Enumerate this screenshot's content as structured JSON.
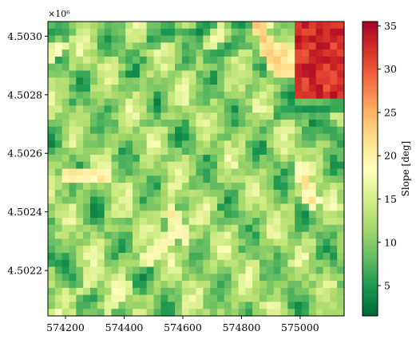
{
  "chart_data": {
    "type": "heatmap",
    "title": "",
    "xlabel": "",
    "ylabel": "",
    "y_offset_label": "×10⁶",
    "xlim": [
      574140,
      575150
    ],
    "ylim": [
      4502045,
      4503050
    ],
    "x_ticks": [
      574200,
      574400,
      574600,
      574800,
      575000
    ],
    "x_tick_labels": [
      "574200",
      "574400",
      "574600",
      "574800",
      "575000"
    ],
    "y_ticks": [
      4502200,
      4502400,
      4502600,
      4502800,
      4503000
    ],
    "y_tick_labels": [
      "4.5022",
      "4.5024",
      "4.5026",
      "4.5028",
      "4.5030"
    ],
    "colorbar": {
      "label": "Slope [deg]",
      "colormap": "RdYlGn_r",
      "range": [
        1.5,
        35.5
      ],
      "ticks": [
        5,
        10,
        15,
        20,
        25,
        30,
        35
      ],
      "tick_labels": [
        "5",
        "10",
        "15",
        "20",
        "25",
        "30",
        "35"
      ]
    },
    "grid": false,
    "features": {
      "grid_cols": 42,
      "grid_rows": 42,
      "background_slope": 11,
      "steep_zone": {
        "x": [
          574990,
          575150
        ],
        "y": [
          4502790,
          4503050
        ],
        "slope": 31
      },
      "ridges": [
        {
          "from": [
            574860,
            4503030
          ],
          "to": [
            574930,
            4502880
          ],
          "slope": 24
        },
        {
          "from": [
            574930,
            4502960
          ],
          "to": [
            575000,
            4502860
          ],
          "slope": 22
        },
        {
          "from": [
            574210,
            4502530
          ],
          "to": [
            574330,
            4502515
          ],
          "slope": 21
        },
        {
          "from": [
            574200,
            4502585
          ],
          "to": [
            574340,
            4502585
          ],
          "slope": 4
        },
        {
          "from": [
            574480,
            4502230
          ],
          "to": [
            574560,
            4502320
          ],
          "slope": 19
        },
        {
          "from": [
            574250,
            4502140
          ],
          "to": [
            574310,
            4502200
          ],
          "slope": 17
        },
        {
          "from": [
            574350,
            4502080
          ],
          "to": [
            574400,
            4502140
          ],
          "slope": 18
        },
        {
          "from": [
            574560,
            4502400
          ],
          "to": [
            574600,
            4502320
          ],
          "slope": 20
        },
        {
          "from": [
            575000,
            4502550
          ],
          "to": [
            575040,
            4502440
          ],
          "slope": 21
        },
        {
          "from": [
            574150,
            4502930
          ],
          "to": [
            574180,
            4502960
          ],
          "slope": 19
        }
      ],
      "valleys": [
        {
          "from": [
            574930,
            4502740
          ],
          "to": [
            575150,
            4502760
          ],
          "slope": 4
        },
        {
          "from": [
            574700,
            4502930
          ],
          "to": [
            574760,
            4502960
          ],
          "slope": 4
        },
        {
          "from": [
            574150,
            4502250
          ],
          "to": [
            574230,
            4502160
          ],
          "slope": 4
        },
        {
          "from": [
            574500,
            4502990
          ],
          "to": [
            574560,
            4503020
          ],
          "slope": 4
        },
        {
          "from": [
            574650,
            4503010
          ],
          "to": [
            574680,
            4503040
          ],
          "slope": 3
        },
        {
          "from": [
            575080,
            4502700
          ],
          "to": [
            575140,
            4502640
          ],
          "slope": 4
        },
        {
          "from": [
            574150,
            4503020
          ],
          "to": [
            574200,
            4503020
          ],
          "slope": 4
        }
      ]
    }
  }
}
